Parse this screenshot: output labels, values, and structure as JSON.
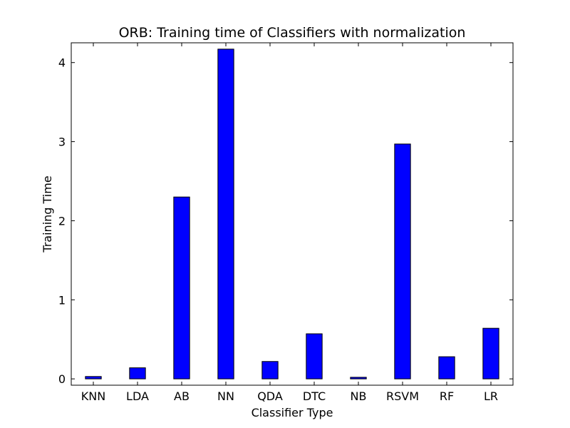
{
  "chart_data": {
    "type": "bar",
    "title": "ORB: Training time of Classifiers with normalization",
    "xlabel": "Classifier Type",
    "ylabel": "Training Time",
    "categories": [
      "KNN",
      "LDA",
      "AB",
      "NN",
      "QDA",
      "DTC",
      "NB",
      "RSVM",
      "RF",
      "LR"
    ],
    "values": [
      0.03,
      0.14,
      2.3,
      4.17,
      0.22,
      0.57,
      0.02,
      2.97,
      0.28,
      0.64
    ],
    "ylim": [
      -0.08,
      4.25
    ],
    "yticks": [
      "0",
      "1",
      "2",
      "3",
      "4"
    ],
    "bar_color": "#0000ff",
    "grid": false,
    "legend": "none"
  }
}
